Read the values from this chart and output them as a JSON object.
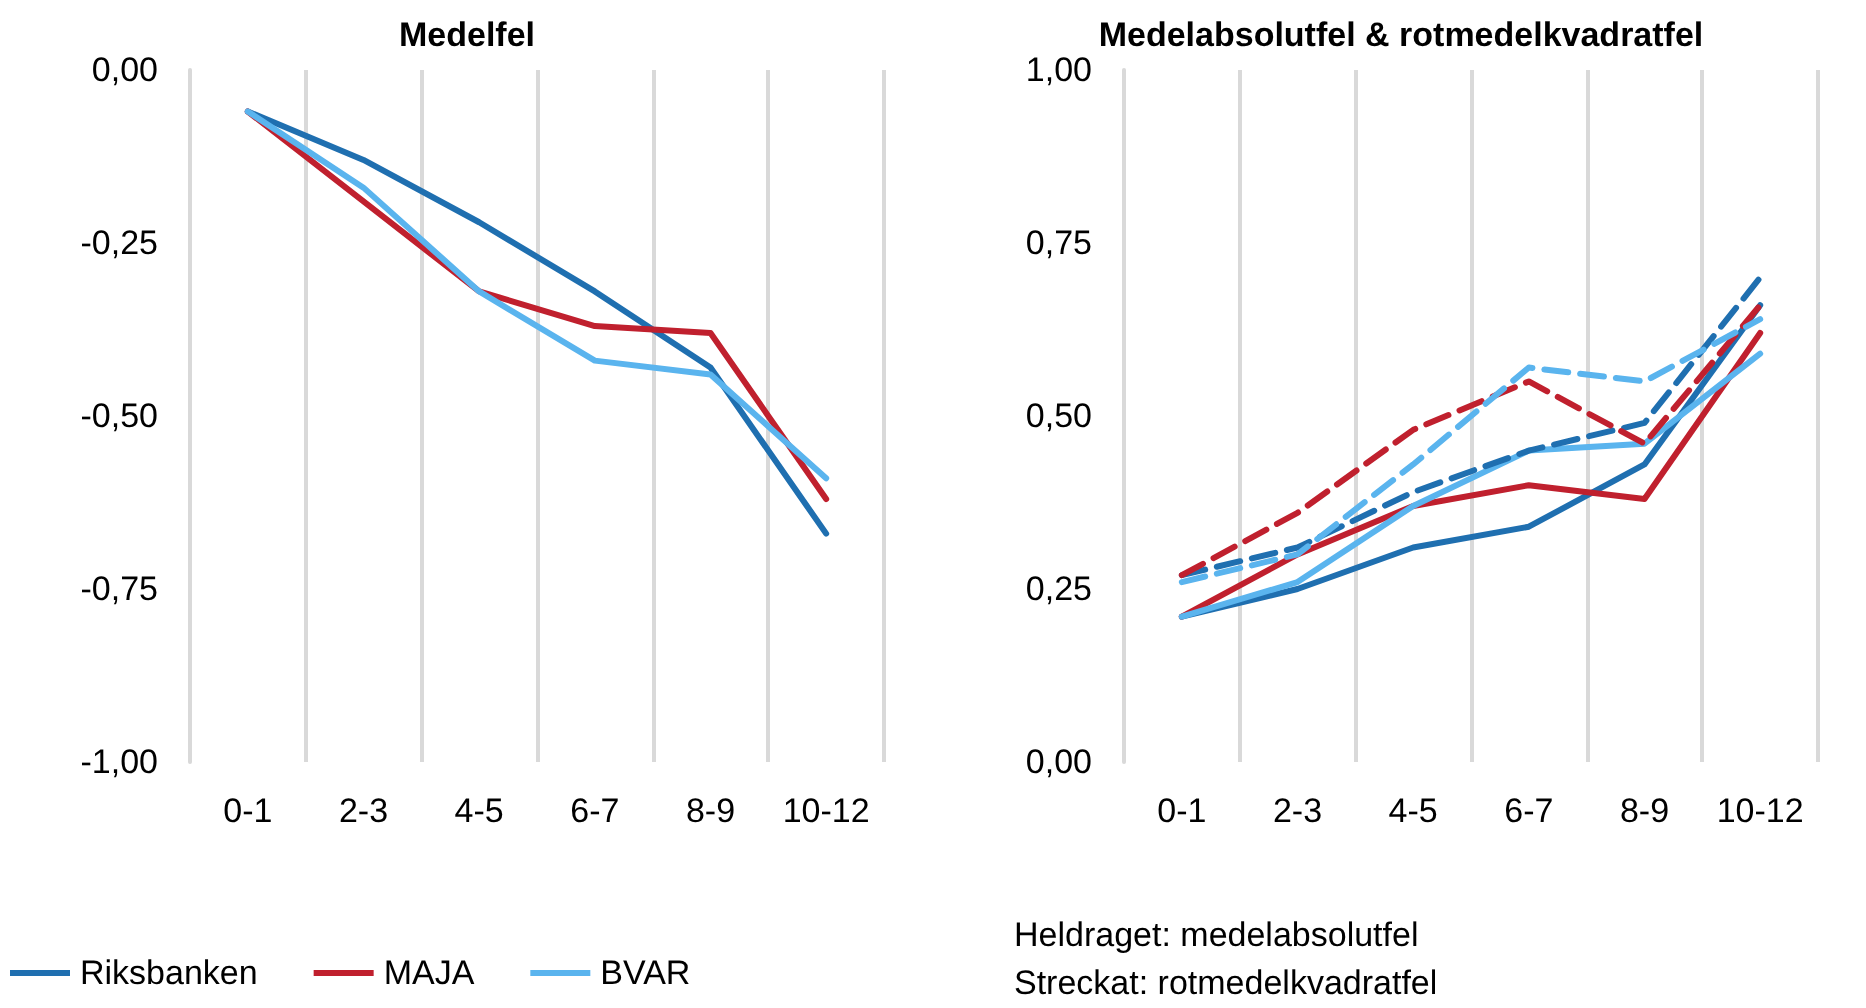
{
  "chart_data": [
    {
      "type": "line",
      "title": "Medelfel",
      "categories": [
        "0-1",
        "2-3",
        "4-5",
        "6-7",
        "8-9",
        "10-12"
      ],
      "ylim": [
        -1,
        0
      ],
      "yticks": [
        {
          "value": -1,
          "label": "-1,00"
        },
        {
          "value": -0.75,
          "label": "-0,75"
        },
        {
          "value": -0.5,
          "label": "-0,50"
        },
        {
          "value": -0.25,
          "label": "-0,25"
        },
        {
          "value": 0,
          "label": "0,00"
        }
      ],
      "grid": "x",
      "legend": "bottom left",
      "marker": "none",
      "series": [
        {
          "name": "Riksbanken",
          "color": "#1f6fb0",
          "values": [
            -0.06,
            -0.13,
            -0.22,
            -0.32,
            -0.43,
            -0.67
          ]
        },
        {
          "name": "MAJA",
          "color": "#c0202e",
          "values": [
            -0.06,
            -0.19,
            -0.32,
            -0.37,
            -0.38,
            -0.62
          ]
        },
        {
          "name": "BVAR",
          "color": "#5ab4ee",
          "values": [
            -0.06,
            -0.17,
            -0.32,
            -0.42,
            -0.44,
            -0.59
          ]
        }
      ]
    },
    {
      "type": "line",
      "title": "Medelabsolutfel & rotmedelkvadratfel",
      "categories": [
        "0-1",
        "2-3",
        "4-5",
        "6-7",
        "8-9",
        "10-12"
      ],
      "ylim": [
        0,
        1
      ],
      "yticks": [
        {
          "value": 0,
          "label": "0,00"
        },
        {
          "value": 0.25,
          "label": "0,25"
        },
        {
          "value": 0.5,
          "label": "0,50"
        },
        {
          "value": 0.75,
          "label": "0,75"
        },
        {
          "value": 1,
          "label": "1,00"
        }
      ],
      "grid": "x",
      "marker": "none",
      "annotations": [
        "Heldraget: medelabsolutfel",
        "Streckat: rotmedelkvadratfel"
      ],
      "series": [
        {
          "color": "#1f6fb0",
          "line_style": "solid",
          "values": [
            0.21,
            0.25,
            0.31,
            0.34,
            0.43,
            0.66
          ]
        },
        {
          "color": "#c0202e",
          "line_style": "solid",
          "values": [
            0.21,
            0.3,
            0.37,
            0.4,
            0.38,
            0.62
          ]
        },
        {
          "color": "#5ab4ee",
          "line_style": "solid",
          "values": [
            0.21,
            0.26,
            0.37,
            0.45,
            0.46,
            0.59
          ]
        },
        {
          "color": "#1f6fb0",
          "line_style": "dashed",
          "values": [
            0.27,
            0.31,
            0.39,
            0.45,
            0.49,
            0.7
          ]
        },
        {
          "color": "#c0202e",
          "line_style": "dashed",
          "values": [
            0.27,
            0.36,
            0.48,
            0.55,
            0.46,
            0.66
          ]
        },
        {
          "color": "#5ab4ee",
          "line_style": "dashed",
          "values": [
            0.26,
            0.3,
            0.43,
            0.57,
            0.55,
            0.64
          ]
        }
      ]
    }
  ]
}
